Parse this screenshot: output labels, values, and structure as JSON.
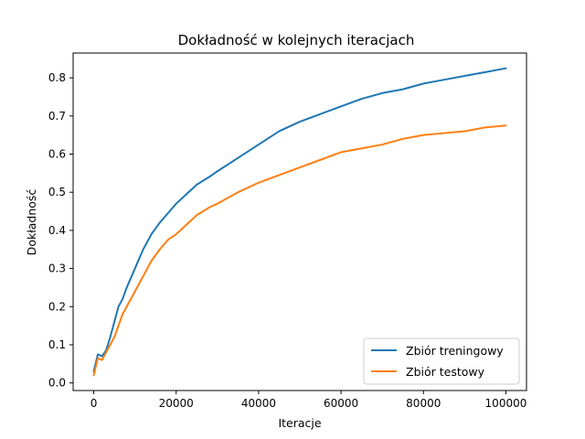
{
  "chart_data": {
    "type": "line",
    "title": "Dokładność w kolejnych iteracjach",
    "xlabel": "Iteracje",
    "ylabel": "Dokładność",
    "xlim": [
      -5000,
      105000
    ],
    "ylim": [
      -0.02,
      0.865
    ],
    "xticks": [
      0,
      20000,
      40000,
      60000,
      80000,
      100000
    ],
    "xtick_labels": [
      "0",
      "20000",
      "40000",
      "60000",
      "80000",
      "100000"
    ],
    "yticks": [
      0.0,
      0.1,
      0.2,
      0.3,
      0.4,
      0.5,
      0.6,
      0.7,
      0.8
    ],
    "ytick_labels": [
      "0.0",
      "0.1",
      "0.2",
      "0.3",
      "0.4",
      "0.5",
      "0.6",
      "0.7",
      "0.8"
    ],
    "grid": false,
    "legend_position": "lower-right",
    "series": [
      {
        "name": "Zbiór treningowy",
        "color": "#1f77b4",
        "x": [
          0,
          1000,
          2000,
          3000,
          4000,
          5000,
          6000,
          7000,
          8000,
          10000,
          12000,
          14000,
          16000,
          18000,
          20000,
          22000,
          25000,
          28000,
          30000,
          35000,
          40000,
          45000,
          50000,
          55000,
          60000,
          65000,
          70000,
          75000,
          80000,
          85000,
          90000,
          95000,
          100000
        ],
        "values": [
          0.03,
          0.075,
          0.07,
          0.085,
          0.12,
          0.16,
          0.2,
          0.22,
          0.25,
          0.3,
          0.35,
          0.39,
          0.42,
          0.445,
          0.47,
          0.49,
          0.52,
          0.54,
          0.555,
          0.59,
          0.625,
          0.66,
          0.685,
          0.705,
          0.725,
          0.745,
          0.76,
          0.77,
          0.785,
          0.795,
          0.805,
          0.815,
          0.825
        ]
      },
      {
        "name": "Zbiór testowy",
        "color": "#ff7f0e",
        "x": [
          0,
          1000,
          2000,
          3000,
          4000,
          5000,
          6000,
          7000,
          8000,
          10000,
          12000,
          14000,
          16000,
          18000,
          20000,
          22000,
          25000,
          28000,
          30000,
          35000,
          40000,
          45000,
          50000,
          55000,
          60000,
          65000,
          70000,
          75000,
          80000,
          85000,
          90000,
          95000,
          100000
        ],
        "values": [
          0.02,
          0.065,
          0.06,
          0.08,
          0.1,
          0.12,
          0.15,
          0.18,
          0.2,
          0.24,
          0.28,
          0.32,
          0.35,
          0.375,
          0.39,
          0.41,
          0.44,
          0.46,
          0.47,
          0.5,
          0.525,
          0.545,
          0.565,
          0.585,
          0.605,
          0.615,
          0.625,
          0.64,
          0.65,
          0.655,
          0.66,
          0.67,
          0.675
        ]
      }
    ]
  }
}
